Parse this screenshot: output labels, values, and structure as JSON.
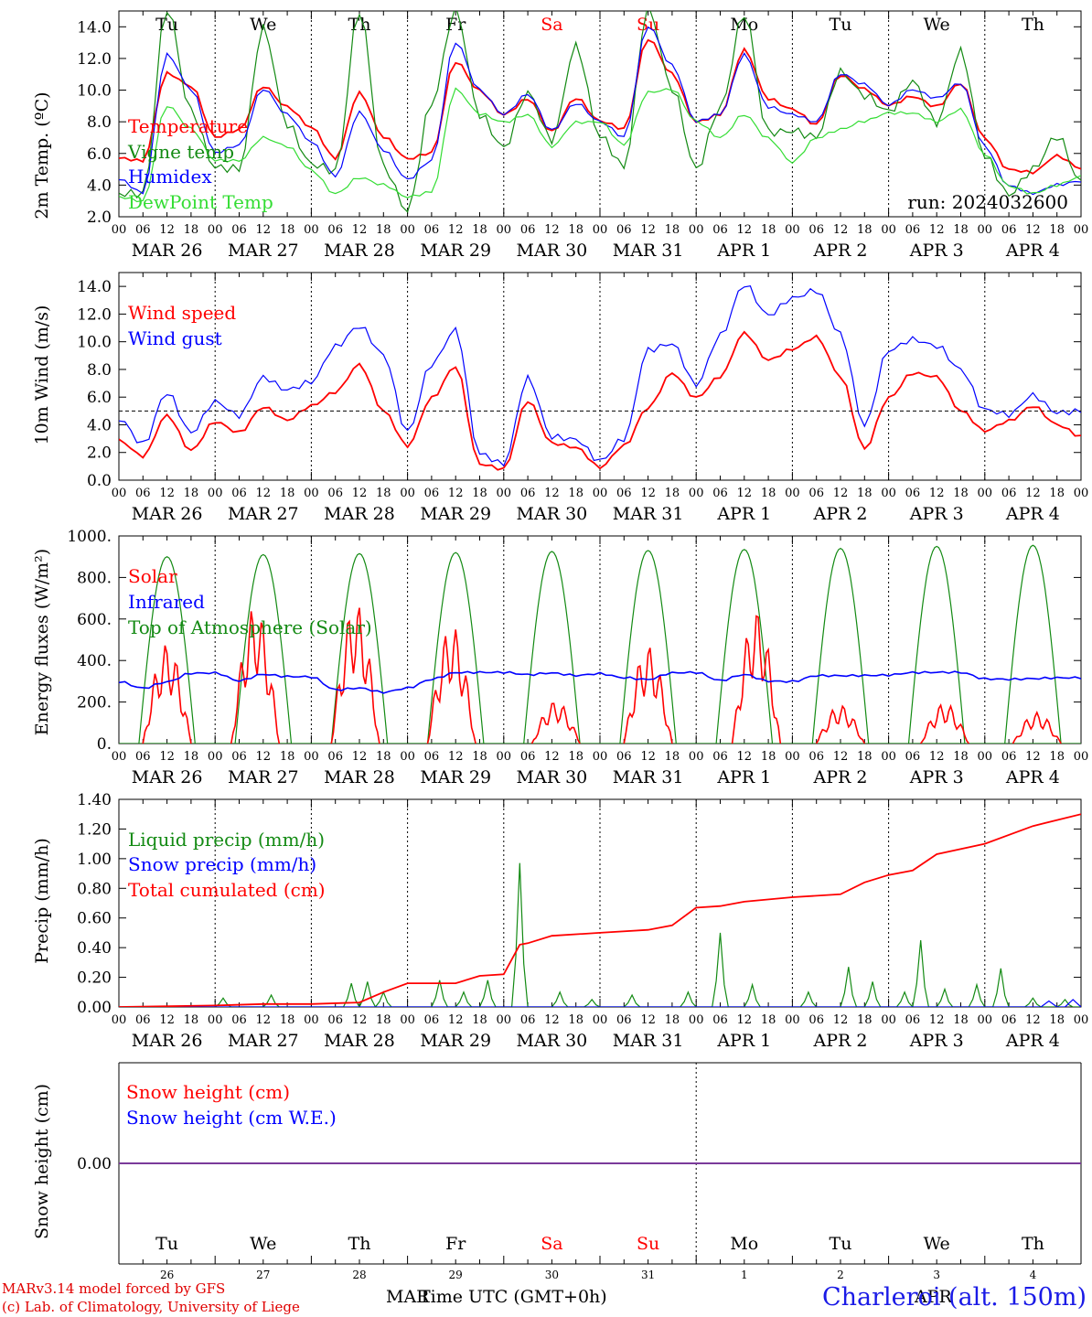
{
  "run_label": "run: 2024032600",
  "day_labels": [
    {
      "name": "Tu",
      "color": "#000000"
    },
    {
      "name": "We",
      "color": "#000000"
    },
    {
      "name": "Th",
      "color": "#000000"
    },
    {
      "name": "Fr",
      "color": "#000000"
    },
    {
      "name": "Sa",
      "color": "#ff0000"
    },
    {
      "name": "Su",
      "color": "#ff0000"
    },
    {
      "name": "Mo",
      "color": "#000000"
    },
    {
      "name": "Tu",
      "color": "#000000"
    },
    {
      "name": "We",
      "color": "#000000"
    },
    {
      "name": "Th",
      "color": "#000000"
    }
  ],
  "date_labels": [
    "MAR 26",
    "MAR 27",
    "MAR 28",
    "MAR 29",
    "MAR 30",
    "MAR 31",
    "APR  1",
    "APR  2",
    "APR  3",
    "APR  4"
  ],
  "hour_labels": [
    "00",
    "06",
    "12",
    "18"
  ],
  "hour_end_label": "00",
  "day_numbers": [
    "26",
    "27",
    "28",
    "29",
    "30",
    "31",
    "1",
    "2",
    "3",
    "4"
  ],
  "bottom_month_left": "MAR",
  "bottom_month_right": "APR",
  "xlabel": "Time UTC (GMT+0h)",
  "footer": {
    "line1": "MARv3.14 model forced by GFS",
    "line2": "(c) Lab. of Climatology, University of Liege"
  },
  "station": "Charleroi (alt. 150m)",
  "colors": {
    "red": "#ff0000",
    "darkgreen": "#138a13",
    "blue": "#0000ff",
    "lightgreen": "#33dd33",
    "purple": "#7a3a9a"
  },
  "chart_data": [
    {
      "type": "line",
      "ylabel": "2m Temp. (ºC)",
      "ylim": [
        2.0,
        15.0
      ],
      "yticks": [
        "2.0",
        "4.0",
        "6.0",
        "8.0",
        "10.0",
        "12.0",
        "14.0"
      ],
      "x_hours": [
        0,
        6,
        12,
        18,
        24,
        30,
        36,
        42,
        48,
        54,
        60,
        66,
        72,
        78,
        84,
        90,
        96,
        102,
        108,
        114,
        120,
        126,
        132,
        138,
        144,
        150,
        156,
        162,
        168,
        174,
        180,
        186,
        192,
        198,
        204,
        210,
        216,
        222,
        228,
        234,
        240
      ],
      "series": [
        {
          "name": "Temperature",
          "color": "red",
          "values": [
            5.7,
            5.5,
            11.0,
            10.2,
            7.0,
            7.5,
            10.3,
            9.0,
            7.7,
            5.7,
            9.8,
            7.0,
            5.6,
            6.0,
            11.8,
            10.0,
            8.5,
            9.5,
            7.4,
            9.5,
            8.0,
            7.5,
            13.2,
            11.0,
            8.0,
            8.5,
            12.6,
            9.5,
            8.8,
            7.8,
            10.9,
            10.0,
            9.0,
            9.6,
            9.0,
            10.5,
            7.0,
            5.0,
            4.8,
            5.8,
            5.0
          ]
        },
        {
          "name": "Vigne temp",
          "color": "darkgreen",
          "values": [
            3.5,
            3.4,
            15.0,
            8.5,
            5.0,
            5.0,
            14.0,
            8.0,
            5.5,
            5.0,
            15.0,
            5.0,
            2.2,
            9.0,
            15.0,
            8.5,
            6.5,
            10.0,
            7.0,
            12.8,
            7.0,
            5.0,
            15.0,
            10.0,
            5.0,
            9.0,
            15.0,
            7.5,
            7.5,
            7.0,
            11.0,
            9.5,
            8.5,
            10.5,
            8.0,
            12.6,
            6.0,
            3.5,
            5.0,
            7.0,
            4.0
          ]
        },
        {
          "name": "Humidex",
          "color": "blue",
          "values": [
            4.4,
            3.5,
            12.2,
            10.0,
            6.0,
            6.5,
            10.1,
            8.5,
            6.8,
            4.6,
            8.6,
            6.2,
            4.3,
            5.5,
            13.0,
            10.0,
            8.5,
            9.8,
            7.5,
            9.2,
            8.0,
            7.0,
            14.0,
            11.5,
            8.0,
            8.5,
            12.3,
            9.0,
            8.5,
            8.0,
            11.0,
            10.3,
            9.0,
            10.0,
            9.5,
            10.5,
            6.5,
            4.0,
            3.5,
            4.0,
            4.2
          ]
        },
        {
          "name": "DewPoint Temp",
          "color": "lightgreen",
          "values": [
            3.3,
            3.0,
            9.0,
            7.5,
            5.5,
            5.5,
            7.0,
            6.5,
            5.0,
            3.5,
            4.5,
            4.0,
            3.2,
            3.5,
            10.0,
            8.5,
            8.0,
            8.5,
            6.5,
            8.0,
            8.0,
            6.5,
            9.8,
            10.0,
            8.0,
            7.0,
            8.5,
            7.0,
            5.5,
            7.0,
            7.5,
            8.0,
            8.5,
            8.5,
            8.0,
            8.8,
            6.0,
            4.0,
            3.5,
            4.0,
            4.5
          ]
        }
      ]
    },
    {
      "type": "line",
      "ylabel": "10m Wind (m/s)",
      "ylim": [
        0.0,
        15.0
      ],
      "yticks": [
        "0.0",
        "2.0",
        "4.0",
        "6.0",
        "8.0",
        "10.0",
        "12.0",
        "14.0"
      ],
      "x_hours": [
        0,
        6,
        12,
        18,
        24,
        30,
        36,
        42,
        48,
        54,
        60,
        66,
        72,
        78,
        84,
        90,
        96,
        102,
        108,
        114,
        120,
        126,
        132,
        138,
        144,
        150,
        156,
        162,
        168,
        174,
        180,
        186,
        192,
        198,
        204,
        210,
        216,
        222,
        228,
        234,
        240
      ],
      "series": [
        {
          "name": "Wind speed",
          "color": "red",
          "values": [
            2.8,
            1.7,
            4.7,
            2.2,
            4.3,
            3.5,
            5.3,
            4.3,
            5.3,
            6.3,
            8.3,
            5.0,
            2.5,
            6.0,
            8.3,
            1.2,
            0.8,
            5.7,
            2.6,
            2.3,
            0.9,
            2.5,
            5.3,
            7.8,
            6.0,
            7.5,
            10.6,
            8.6,
            9.4,
            10.3,
            7.5,
            2.3,
            6.0,
            7.8,
            7.5,
            5.0,
            3.5,
            4.2,
            5.3,
            4.0,
            3.2
          ]
        },
        {
          "name": "Wind gust",
          "color": "blue",
          "values": [
            4.3,
            2.5,
            6.3,
            3.5,
            5.8,
            4.8,
            7.5,
            6.5,
            7.0,
            9.5,
            11.0,
            9.0,
            3.5,
            8.5,
            11.0,
            2.0,
            1.2,
            7.3,
            3.0,
            2.8,
            1.3,
            3.0,
            9.5,
            10.0,
            7.0,
            10.5,
            14.1,
            11.8,
            13.0,
            13.6,
            10.5,
            4.0,
            9.5,
            10.3,
            9.8,
            8.0,
            5.0,
            4.6,
            6.0,
            4.8,
            5.0
          ]
        }
      ],
      "reference_line": 5.0
    },
    {
      "type": "line",
      "ylabel": "Energy fluxes (W/m²)",
      "ylim": [
        0,
        1000
      ],
      "yticks": [
        "0.",
        "200.",
        "400.",
        "600.",
        "800.",
        "1000."
      ],
      "series": [
        {
          "name": "Solar",
          "color": "red",
          "peaks": [
            [
              12,
              480
            ],
            [
              34,
              660
            ],
            [
              59,
              680
            ],
            [
              83,
              570
            ],
            [
              109,
              205
            ],
            [
              132,
              470
            ],
            [
              159,
              640
            ],
            [
              180,
              185
            ],
            [
              206,
              195
            ],
            [
              229,
              150
            ]
          ]
        },
        {
          "name": "Infrared",
          "color": "blue",
          "x_hours": [
            0,
            6,
            12,
            18,
            24,
            30,
            36,
            42,
            48,
            54,
            60,
            66,
            72,
            78,
            84,
            90,
            96,
            102,
            108,
            114,
            120,
            126,
            132,
            138,
            144,
            150,
            156,
            162,
            168,
            174,
            180,
            186,
            192,
            198,
            204,
            210,
            216,
            222,
            228,
            234,
            240
          ],
          "values": [
            300,
            270,
            300,
            340,
            340,
            300,
            330,
            320,
            320,
            260,
            270,
            250,
            270,
            310,
            340,
            340,
            340,
            330,
            340,
            330,
            340,
            320,
            310,
            340,
            340,
            300,
            330,
            300,
            300,
            330,
            330,
            330,
            330,
            340,
            340,
            340,
            310,
            310,
            315,
            320,
            320
          ]
        },
        {
          "name": "Top of Atmosphere (Solar)",
          "color": "darkgreen",
          "peaks": [
            [
              12,
              900
            ],
            [
              36,
              910
            ],
            [
              60,
              915
            ],
            [
              84,
              920
            ],
            [
              108,
              925
            ],
            [
              132,
              930
            ],
            [
              156,
              935
            ],
            [
              180,
              940
            ],
            [
              204,
              950
            ],
            [
              228,
              955
            ]
          ]
        }
      ]
    },
    {
      "type": "line",
      "ylabel": "Precip (mm/h)",
      "ylim": [
        0.0,
        1.4
      ],
      "yticks": [
        "0.00",
        "0.20",
        "0.40",
        "0.60",
        "0.80",
        "1.00",
        "1.20",
        "1.40"
      ],
      "series": [
        {
          "name": "Liquid precip (mm/h)",
          "color": "darkgreen",
          "events": [
            [
              26,
              0.06
            ],
            [
              38,
              0.08
            ],
            [
              58,
              0.16
            ],
            [
              62,
              0.17
            ],
            [
              66,
              0.1
            ],
            [
              80,
              0.18
            ],
            [
              86,
              0.1
            ],
            [
              92,
              0.18
            ],
            [
              100,
              0.97
            ],
            [
              110,
              0.1
            ],
            [
              118,
              0.05
            ],
            [
              128,
              0.08
            ],
            [
              142,
              0.1
            ],
            [
              150,
              0.5
            ],
            [
              158,
              0.15
            ],
            [
              172,
              0.1
            ],
            [
              182,
              0.27
            ],
            [
              188,
              0.17
            ],
            [
              196,
              0.1
            ],
            [
              200,
              0.45
            ],
            [
              206,
              0.12
            ],
            [
              214,
              0.15
            ],
            [
              220,
              0.26
            ],
            [
              228,
              0.06
            ],
            [
              236,
              0.05
            ]
          ]
        },
        {
          "name": "Snow precip (mm/h)",
          "color": "blue",
          "events": [
            [
              232,
              0.04
            ],
            [
              238,
              0.05
            ]
          ]
        },
        {
          "name": "Total cumulated (cm)",
          "color": "red",
          "x_hours": [
            0,
            24,
            36,
            48,
            60,
            66,
            72,
            84,
            90,
            96,
            100,
            102,
            108,
            120,
            132,
            138,
            144,
            150,
            156,
            168,
            180,
            186,
            192,
            198,
            204,
            216,
            228,
            240
          ],
          "values": [
            0.0,
            0.01,
            0.02,
            0.02,
            0.03,
            0.1,
            0.16,
            0.16,
            0.21,
            0.22,
            0.42,
            0.43,
            0.48,
            0.5,
            0.52,
            0.55,
            0.67,
            0.68,
            0.71,
            0.74,
            0.76,
            0.84,
            0.89,
            0.92,
            1.03,
            1.1,
            1.22,
            1.3
          ]
        }
      ]
    },
    {
      "type": "line",
      "ylabel": "Snow height (cm)",
      "yticks": [
        "0.00"
      ],
      "series": [
        {
          "name": "Snow height (cm)",
          "color": "red",
          "values": [
            0.0,
            0.0
          ]
        },
        {
          "name": "Snow height (cm W.E.)",
          "color": "blue",
          "values": [
            0.0,
            0.0
          ]
        }
      ]
    }
  ]
}
